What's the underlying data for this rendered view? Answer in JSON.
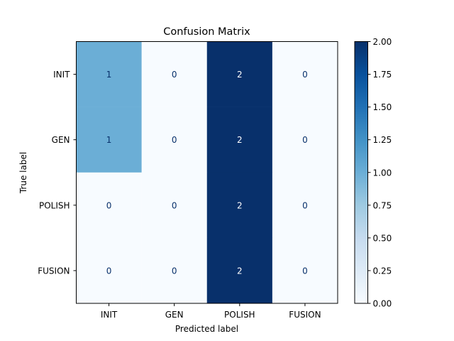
{
  "chart_data": {
    "type": "heatmap",
    "title": "Confusion Matrix",
    "xlabel": "Predicted label",
    "ylabel": "True label",
    "x_categories": [
      "INIT",
      "GEN",
      "POLISH",
      "FUSION"
    ],
    "y_categories": [
      "INIT",
      "GEN",
      "POLISH",
      "FUSION"
    ],
    "values": [
      [
        1,
        0,
        2,
        0
      ],
      [
        1,
        0,
        2,
        0
      ],
      [
        0,
        0,
        2,
        0
      ],
      [
        0,
        0,
        2,
        0
      ]
    ],
    "colormap": "Blues",
    "vmin": 0,
    "vmax": 2,
    "colorbar_ticks": [
      "0.00",
      "0.25",
      "0.50",
      "0.75",
      "1.00",
      "1.25",
      "1.50",
      "1.75",
      "2.00"
    ],
    "grid": false
  }
}
